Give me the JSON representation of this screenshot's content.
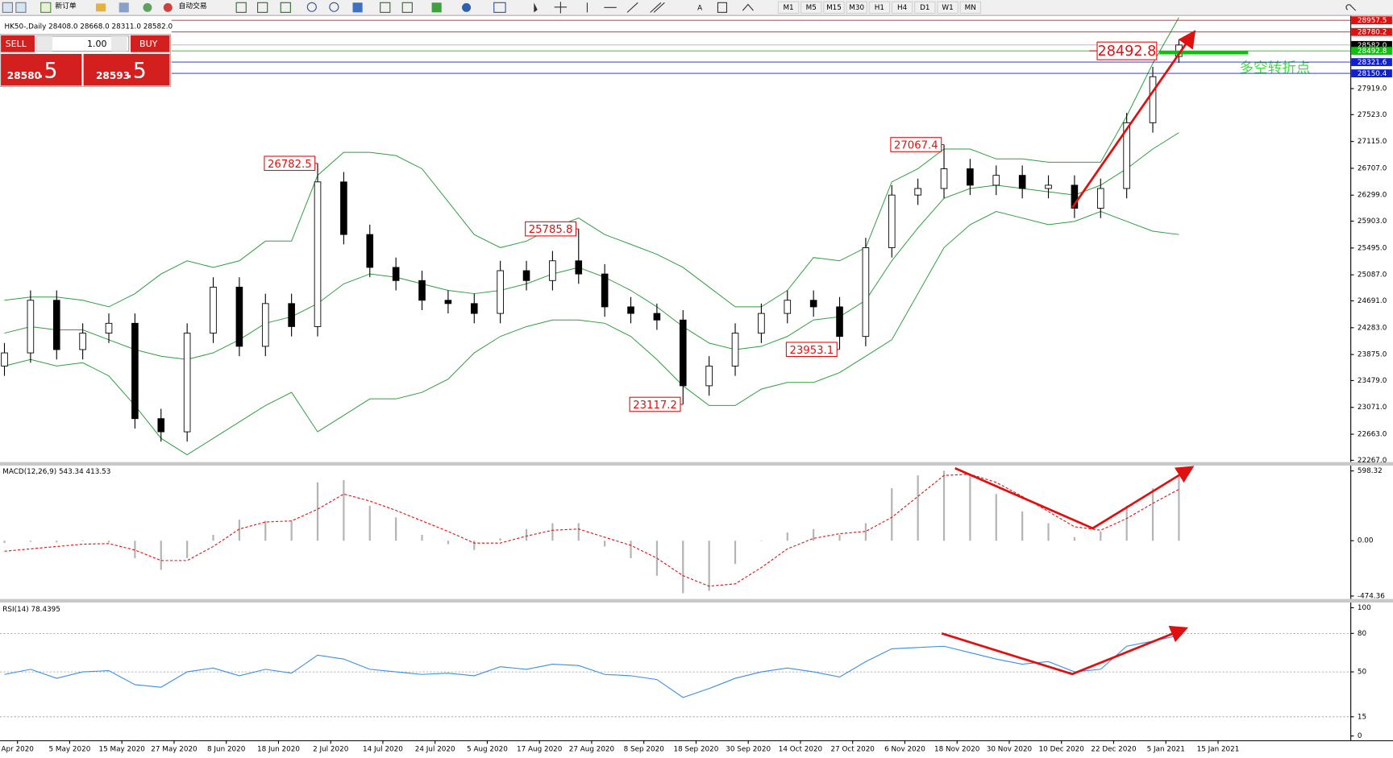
{
  "toolbar": {
    "new_order": "新订单",
    "auto_trading": "自动交易",
    "timeframes": [
      "M1",
      "M5",
      "M15",
      "M30",
      "H1",
      "H4",
      "D1",
      "W1",
      "MN"
    ]
  },
  "trade_panel": {
    "sell": "SELL",
    "lot": "1.00",
    "buy": "BUY",
    "bid_main": "28580",
    "bid_frac": ".5",
    "ask_main": "28593",
    "ask_frac": ".5"
  },
  "chart_data": [
    {
      "type": "candlestick",
      "title": "HK50-,Daily  28408.0 28668.0 28311.0 28582.0",
      "open": [
        23700,
        23900,
        24700,
        23950,
        24200,
        24350,
        22900,
        22700,
        24200,
        24900,
        24000,
        24650,
        24300,
        26500,
        25700,
        25200,
        25000,
        24700,
        24650,
        24500,
        25150,
        25000,
        25300,
        25100,
        24600,
        24500,
        24400,
        23400,
        23700,
        24200,
        24500,
        24700,
        24600,
        24150,
        25500,
        26300,
        26400,
        26700,
        26450,
        26600,
        26400,
        26450,
        26100,
        26400,
        27400,
        28408
      ],
      "high": [
        24050,
        24850,
        24850,
        24350,
        24500,
        24500,
        23050,
        24350,
        25050,
        25050,
        24800,
        24800,
        26782.5,
        26650,
        25850,
        25350,
        25150,
        24850,
        24800,
        25300,
        25300,
        25450,
        25785.8,
        25250,
        24750,
        24650,
        24550,
        23850,
        24350,
        24650,
        24850,
        24850,
        24750,
        25650,
        26450,
        26550,
        27067.4,
        26850,
        26750,
        26750,
        26600,
        26600,
        26550,
        27550,
        28250,
        28668
      ],
      "low": [
        23550,
        23750,
        23800,
        23800,
        24050,
        22750,
        22550,
        22550,
        24050,
        23850,
        23850,
        24150,
        24150,
        25550,
        25050,
        24850,
        24550,
        24500,
        24350,
        24350,
        24850,
        24850,
        24950,
        24450,
        24350,
        24250,
        23117.2,
        23250,
        23550,
        24050,
        24350,
        24450,
        23953.1,
        24000,
        25350,
        26150,
        26250,
        26300,
        26300,
        26250,
        26250,
        25950,
        25950,
        26250,
        27250,
        28311
      ],
      "close": [
        23900,
        24700,
        23950,
        24200,
        24350,
        22900,
        22700,
        24200,
        24900,
        24000,
        24650,
        24300,
        26500,
        25700,
        25200,
        25000,
        24700,
        24650,
        24500,
        25150,
        25000,
        25300,
        25100,
        24600,
        24500,
        24400,
        23400,
        23700,
        24200,
        24500,
        24700,
        24600,
        24150,
        25500,
        26300,
        26400,
        26700,
        26450,
        26600,
        26400,
        26450,
        26100,
        26400,
        27400,
        28100,
        28582
      ],
      "bands": {
        "upper": [
          24700,
          24750,
          24750,
          24700,
          24600,
          24800,
          25100,
          25300,
          25200,
          25300,
          25600,
          25600,
          26600,
          26950,
          26950,
          26900,
          26700,
          26200,
          25700,
          25500,
          25600,
          25800,
          25950,
          25700,
          25550,
          25400,
          25200,
          24900,
          24600,
          24600,
          24850,
          25350,
          25300,
          25500,
          26500,
          26700,
          27000,
          27000,
          26850,
          26850,
          26800,
          26800,
          26800,
          27500,
          28300,
          29000
        ],
        "middle": [
          24200,
          24300,
          24250,
          24250,
          24100,
          23950,
          23850,
          23800,
          23900,
          24100,
          24350,
          24450,
          24650,
          24950,
          25100,
          25050,
          24950,
          24850,
          24800,
          24850,
          24950,
          25100,
          25200,
          25050,
          24850,
          24600,
          24300,
          24050,
          23950,
          24000,
          24150,
          24400,
          24450,
          24700,
          25300,
          25800,
          26250,
          26400,
          26450,
          26400,
          26350,
          26300,
          26450,
          26700,
          27000,
          27250
        ],
        "lower": [
          23700,
          23800,
          23700,
          23750,
          23550,
          23100,
          22600,
          22350,
          22600,
          22850,
          23100,
          23300,
          22700,
          22950,
          23200,
          23200,
          23300,
          23500,
          23900,
          24150,
          24300,
          24400,
          24400,
          24350,
          24150,
          23800,
          23400,
          23100,
          23100,
          23350,
          23450,
          23450,
          23600,
          23850,
          24100,
          24800,
          25500,
          25850,
          26050,
          25950,
          25850,
          25900,
          26050,
          25900,
          25750,
          25700
        ]
      },
      "band_color": "#2e9e3e",
      "up_color": "#ffffff",
      "down_color": "#000000",
      "ylim": [
        22240,
        29011
      ],
      "yticks": [
        {
          "value": 22267,
          "label": "22267.0"
        },
        {
          "value": 22663,
          "label": "22663.0"
        },
        {
          "value": 23071,
          "label": "23071.0"
        },
        {
          "value": 23479,
          "label": "23479.0"
        },
        {
          "value": 23875,
          "label": "23875.0"
        },
        {
          "value": 24283,
          "label": "24283.0"
        },
        {
          "value": 24691,
          "label": "24691.0"
        },
        {
          "value": 25087,
          "label": "25087.0"
        },
        {
          "value": 25495,
          "label": "25495.0"
        },
        {
          "value": 25903,
          "label": "25903.0"
        },
        {
          "value": 26299,
          "label": "26299.0"
        },
        {
          "value": 26707,
          "label": "26707.0"
        },
        {
          "value": 27115,
          "label": "27115.0"
        },
        {
          "value": 27523,
          "label": "27523.0"
        },
        {
          "value": 27919,
          "label": "27919.0"
        }
      ],
      "grid": false,
      "price_levels": [
        {
          "value": 28957.5,
          "color": "#e01010"
        },
        {
          "value": 28780.2,
          "color": "#e01010"
        },
        {
          "value": 28582,
          "label": "28582.0",
          "color": "#000000"
        },
        {
          "value": 28492.8,
          "color": "#10c010",
          "callout": true
        },
        {
          "value": 28321.6,
          "color": "#1020d0"
        },
        {
          "value": 28150.4,
          "color": "#1020d0"
        }
      ],
      "annotation": "多空转折点",
      "x_labels": [
        "Apr 2020",
        "5 May 2020",
        "15 May 2020",
        "27 May 2020",
        "8 Jun 2020",
        "18 Jun 2020",
        "2 Jul 2020",
        "14 Jul 2020",
        "24 Jul 2020",
        "5 Aug 2020",
        "17 Aug 2020",
        "27 Aug 2020",
        "8 Sep 2020",
        "18 Sep 2020",
        "30 Sep 2020",
        "14 Oct 2020",
        "27 Oct 2020",
        "6 Nov 2020",
        "18 Nov 2020",
        "30 Nov 2020",
        "10 Dec 2020",
        "22 Dec 2020",
        "5 Jan 2021",
        "15 Jan 2021"
      ]
    },
    {
      "type": "macd",
      "title": "MACD(12,26,9) 543.34 413.53",
      "histogram": [
        -20,
        -10,
        -15,
        -5,
        -15,
        -150,
        -250,
        -150,
        50,
        180,
        170,
        170,
        500,
        520,
        300,
        200,
        50,
        -30,
        -80,
        20,
        100,
        150,
        150,
        -50,
        -150,
        -300,
        -450,
        -430,
        -200,
        0,
        70,
        100,
        50,
        150,
        450,
        560,
        600,
        570,
        400,
        250,
        150,
        30,
        80,
        300,
        450,
        560
      ],
      "signal": [
        -90,
        -70,
        -50,
        -30,
        -25,
        -80,
        -170,
        -170,
        -50,
        100,
        160,
        170,
        270,
        400,
        340,
        260,
        170,
        80,
        -20,
        -20,
        40,
        90,
        100,
        30,
        -40,
        -150,
        -300,
        -390,
        -370,
        -230,
        -70,
        20,
        60,
        80,
        200,
        380,
        560,
        570,
        500,
        380,
        250,
        120,
        90,
        190,
        320,
        440
      ],
      "histogram_color": "#b4b4b4",
      "signal_color": "#e01010",
      "ylim": [
        -492,
        644
      ],
      "yticks": [
        598.32,
        {
          "value": 0,
          "label": "0.00"
        },
        -474.36
      ]
    },
    {
      "type": "rsi",
      "title": "RSI(14) 78.4395",
      "values": [
        48,
        52,
        45,
        50,
        51,
        40,
        38,
        50,
        53,
        47,
        52,
        49,
        63,
        60,
        52,
        50,
        48,
        49,
        47,
        54,
        52,
        56,
        55,
        48,
        47,
        44,
        30,
        37,
        45,
        50,
        53,
        50,
        46,
        58,
        68,
        69,
        70,
        65,
        60,
        56,
        58,
        50,
        52,
        70,
        74,
        78.4395
      ],
      "color": "#3a8ee6",
      "ylim": [
        -2,
        103.4
      ],
      "yticks": [
        100,
        80,
        50,
        15,
        0
      ],
      "levels": [
        80,
        50,
        15
      ]
    }
  ]
}
